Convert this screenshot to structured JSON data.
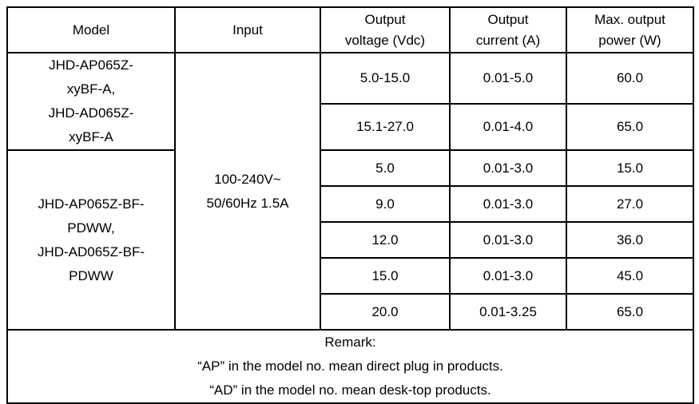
{
  "table": {
    "headers": {
      "model": "Model",
      "input": "Input",
      "output_voltage": "Output\nvoltage (Vdc)",
      "output_current": "Output\ncurrent (A)",
      "max_output_power": "Max. output\npower (W)"
    },
    "model_groups": [
      {
        "name": "JHD-AP065Z-\nxyBF-A,\nJHD-AD065Z-\nxyBF-A",
        "row_span": 2
      },
      {
        "name": "JHD-AP065Z-BF-\nPDWW,\nJHD-AD065Z-BF-\nPDWW",
        "row_span": 5
      }
    ],
    "input_value": "100-240V~\n50/60Hz 1.5A",
    "rows": [
      {
        "voltage": "5.0-15.0",
        "current": "0.01-5.0",
        "power": "60.0"
      },
      {
        "voltage": "15.1-27.0",
        "current": "0.01-4.0",
        "power": "65.0"
      },
      {
        "voltage": "5.0",
        "current": "0.01-3.0",
        "power": "15.0"
      },
      {
        "voltage": "9.0",
        "current": "0.01-3.0",
        "power": "27.0"
      },
      {
        "voltage": "12.0",
        "current": "0.01-3.0",
        "power": "36.0"
      },
      {
        "voltage": "15.0",
        "current": "0.01-3.0",
        "power": "45.0"
      },
      {
        "voltage": "20.0",
        "current": "0.01-3.25",
        "power": "65.0"
      }
    ],
    "remark": {
      "title": "Remark:",
      "lines": [
        "“AP” in the model no. mean direct plug in products.",
        "“AD” in the model no. mean desk-top products."
      ]
    },
    "colors": {
      "border": "#000000",
      "background": "#ffffff",
      "text": "#000000"
    }
  }
}
